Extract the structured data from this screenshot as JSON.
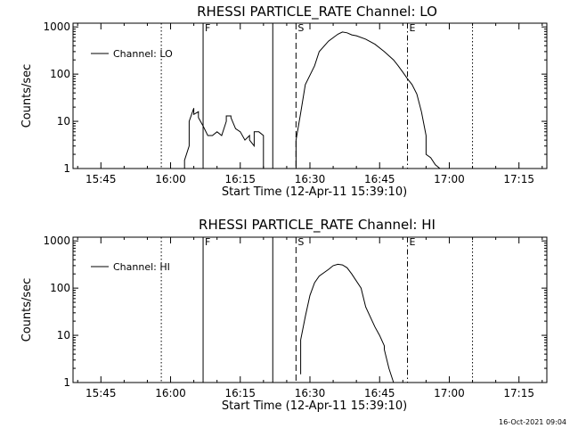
{
  "footer": {
    "timestamp": "16-Oct-2021 09:04"
  },
  "chart_data": [
    {
      "type": "line",
      "title": "RHESSI PARTICLE_RATE Channel: LO",
      "xlabel": "Start Time (12-Apr-11 15:39:10)",
      "ylabel": "Counts/sec",
      "y_scale": "log",
      "x_range": [
        "15:39",
        "17:21"
      ],
      "y_range": [
        1,
        1200
      ],
      "x_ticks": [
        "15:45",
        "16:00",
        "16:15",
        "16:30",
        "16:45",
        "17:00",
        "17:15"
      ],
      "y_ticks": [
        "1",
        "10",
        "100",
        "1000"
      ],
      "legend": {
        "position": "top-left",
        "entries": [
          "Channel: LO"
        ]
      },
      "markers": [
        {
          "time": "15:58",
          "style": "dotted",
          "label": ""
        },
        {
          "time": "16:07",
          "style": "solid",
          "label": "F"
        },
        {
          "time": "16:22",
          "style": "solid",
          "label": ""
        },
        {
          "time": "16:27",
          "style": "dashed",
          "label": "S"
        },
        {
          "time": "16:51",
          "style": "dashdot",
          "label": "E"
        },
        {
          "time": "17:05",
          "style": "dotted",
          "label": ""
        }
      ],
      "series": [
        {
          "name": "Channel: LO",
          "segments": [
            {
              "t": [
                "16:03",
                "16:03",
                "16:04",
                "16:04",
                "16:05",
                "16:05",
                "16:06",
                "16:06",
                "16:07",
                "16:08",
                "16:09",
                "16:10",
                "16:11",
                "16:12",
                "16:12",
                "16:13",
                "16:13",
                "16:14",
                "16:15",
                "16:16",
                "16:17",
                "16:17",
                "16:18",
                "16:18",
                "16:19",
                "16:20",
                "16:20"
              ],
              "y": [
                1,
                1.5,
                3,
                10,
                19,
                14,
                16,
                12,
                8,
                5,
                5,
                6,
                5,
                10,
                13,
                13,
                12,
                7,
                6,
                4,
                5,
                4,
                3,
                6,
                6,
                5,
                1
              ]
            },
            {
              "t": [
                "16:27",
                "16:27",
                "16:28",
                "16:29",
                "16:31",
                "16:32",
                "16:34",
                "16:36",
                "16:37",
                "16:38",
                "16:39",
                "16:40",
                "16:42",
                "16:44",
                "16:46",
                "16:48",
                "16:49",
                "16:50",
                "16:51",
                "16:52",
                "16:53",
                "16:54",
                "16:55",
                "16:55",
                "16:56",
                "16:57",
                "16:58"
              ],
              "y": [
                1,
                4,
                15,
                60,
                150,
                300,
                500,
                700,
                780,
                750,
                680,
                650,
                550,
                430,
                300,
                200,
                150,
                110,
                80,
                60,
                38,
                16,
                5,
                2,
                1.7,
                1.2,
                1
              ]
            }
          ]
        }
      ]
    },
    {
      "type": "line",
      "title": "RHESSI PARTICLE_RATE Channel: HI",
      "xlabel": "Start Time (12-Apr-11 15:39:10)",
      "ylabel": "Counts/sec",
      "y_scale": "log",
      "x_range": [
        "15:39",
        "17:21"
      ],
      "y_range": [
        1,
        1200
      ],
      "x_ticks": [
        "15:45",
        "16:00",
        "16:15",
        "16:30",
        "16:45",
        "17:00",
        "17:15"
      ],
      "y_ticks": [
        "1",
        "10",
        "100",
        "1000"
      ],
      "legend": {
        "position": "top-left",
        "entries": [
          "Channel: HI"
        ]
      },
      "markers": [
        {
          "time": "15:58",
          "style": "dotted",
          "label": ""
        },
        {
          "time": "16:07",
          "style": "solid",
          "label": "F"
        },
        {
          "time": "16:22",
          "style": "solid",
          "label": ""
        },
        {
          "time": "16:27",
          "style": "dashed",
          "label": "S"
        },
        {
          "time": "16:51",
          "style": "dashdot",
          "label": "E"
        },
        {
          "time": "17:05",
          "style": "dotted",
          "label": ""
        }
      ],
      "series": [
        {
          "name": "Channel: HI",
          "segments": [
            {
              "t": [
                "16:28",
                "16:28",
                "16:29",
                "16:30",
                "16:31",
                "16:32",
                "16:34",
                "16:35",
                "16:36",
                "16:37",
                "16:38",
                "16:39",
                "16:41",
                "16:42",
                "16:44",
                "16:45",
                "16:46",
                "16:46",
                "16:47",
                "16:48"
              ],
              "y": [
                1.5,
                8,
                25,
                70,
                130,
                180,
                250,
                300,
                320,
                310,
                270,
                200,
                100,
                40,
                15,
                10,
                6,
                5,
                2,
                1
              ]
            }
          ]
        }
      ]
    }
  ]
}
